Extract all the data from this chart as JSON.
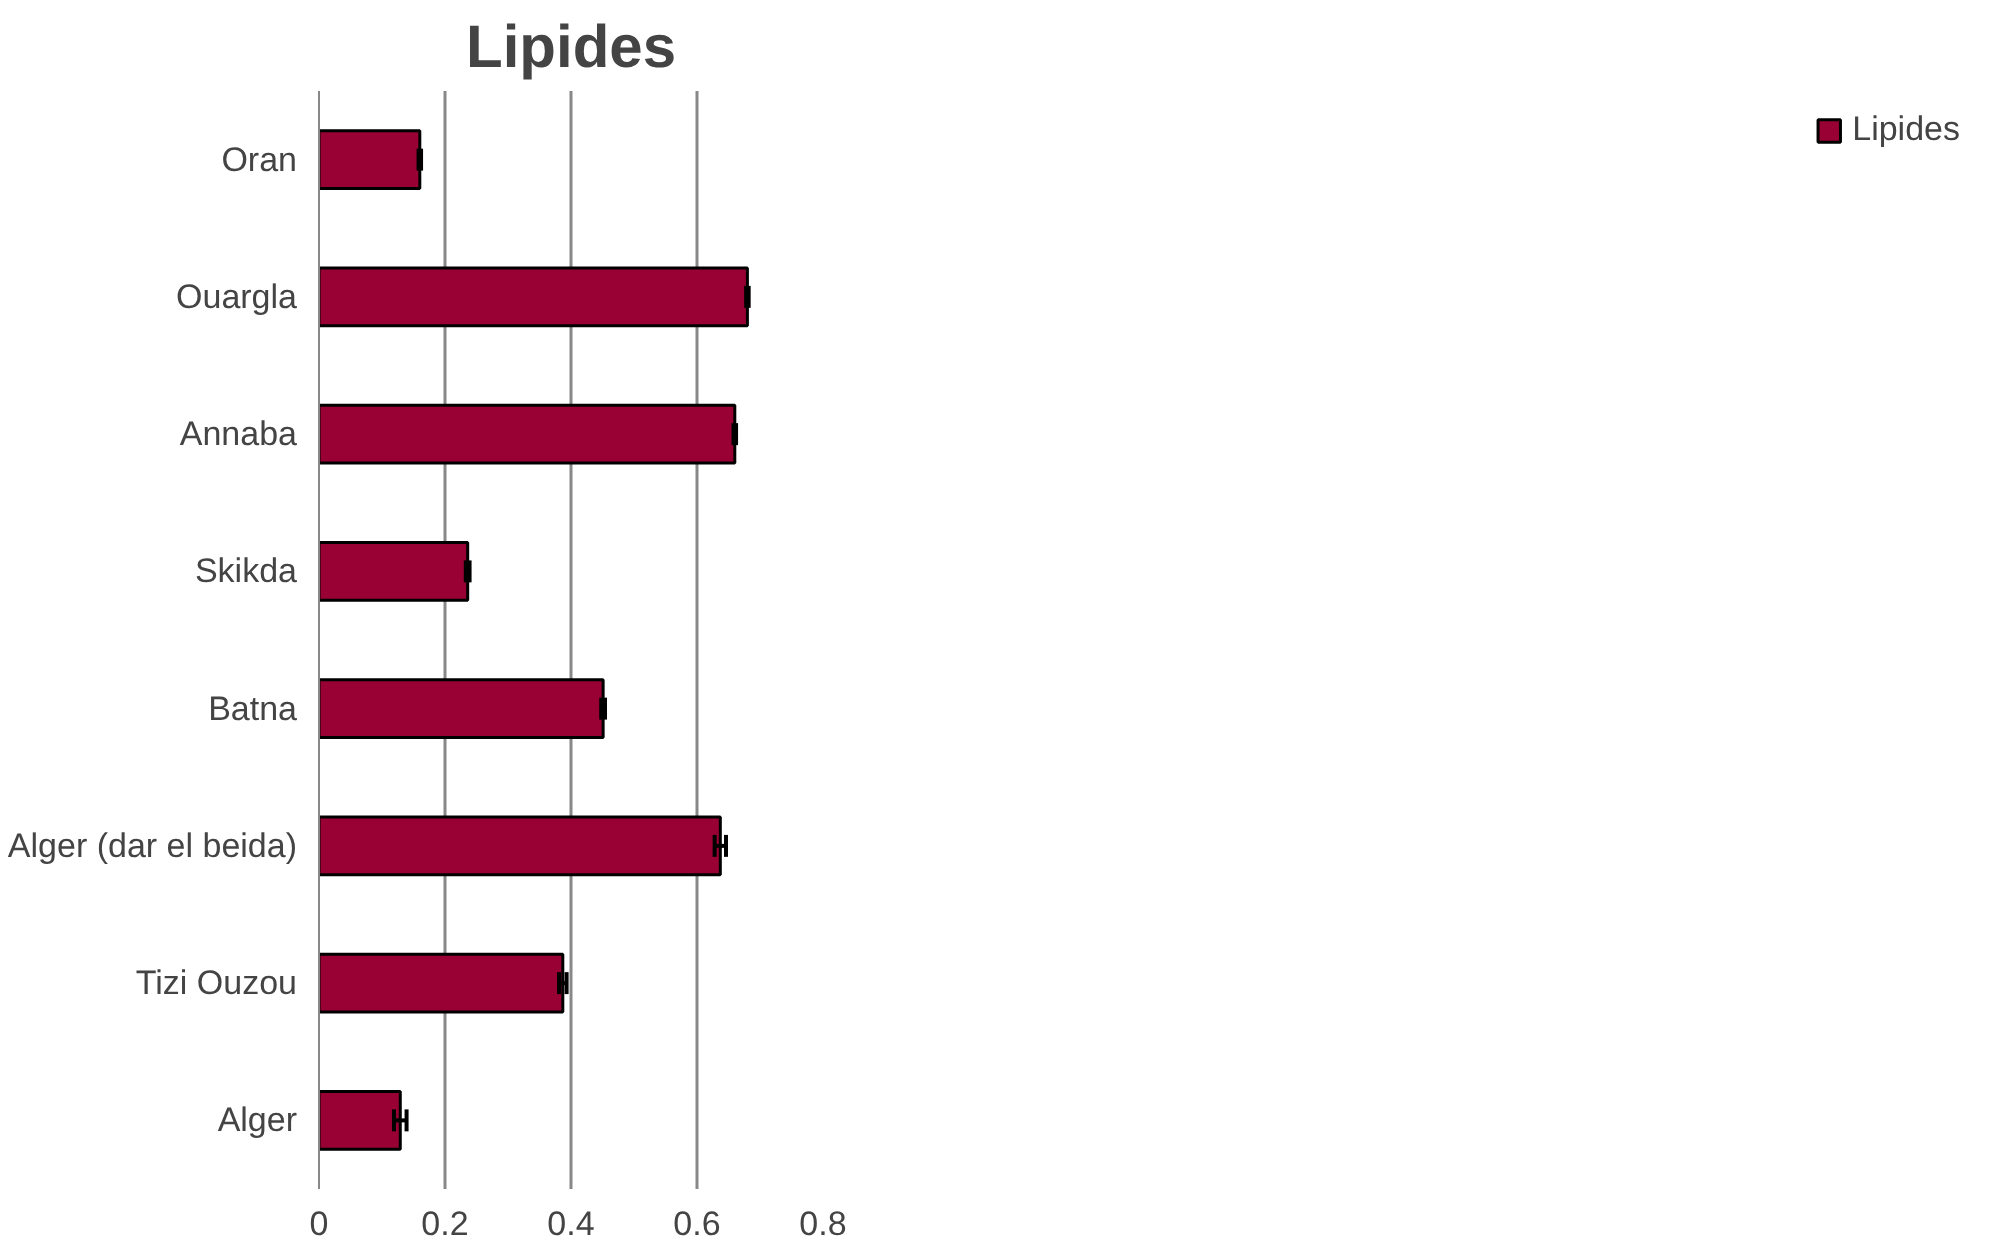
{
  "chart_data": {
    "type": "bar",
    "orientation": "horizontal",
    "title": "Lipides",
    "categories": [
      "Oran",
      "Ouargla",
      "Annaba",
      "Skikda",
      "Batna",
      "Alger (dar el beida)",
      "Tizi Ouzou",
      "Alger"
    ],
    "series": [
      {
        "name": "Lipides",
        "color": "#990033",
        "values": [
          0.16,
          0.68,
          0.66,
          0.236,
          0.451,
          0.637,
          0.387,
          0.129
        ],
        "errors": [
          0.002,
          0.002,
          0.002,
          0.003,
          0.003,
          0.009,
          0.006,
          0.01
        ]
      }
    ],
    "xlim": [
      0,
      0.8
    ],
    "xticks": [
      0,
      0.2,
      0.4,
      0.6,
      0.8
    ],
    "grid": "x",
    "legend": "right"
  }
}
